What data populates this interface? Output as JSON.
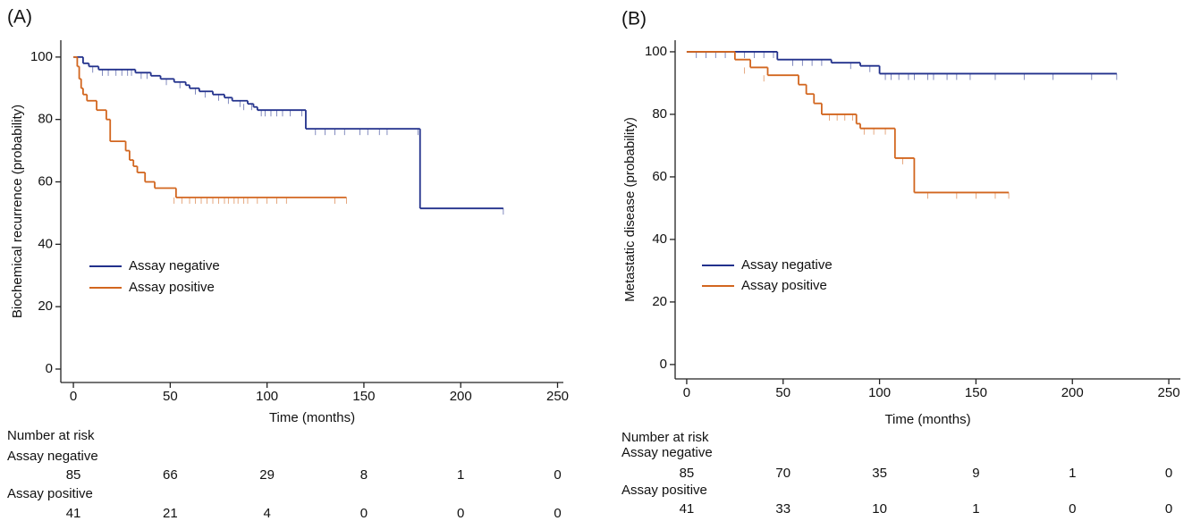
{
  "chart_data": [
    {
      "type": "line",
      "panel_label": "(A)",
      "xlabel": "Time (months)",
      "ylabel": "Biochemical recurrence (probability)",
      "xlim": [
        -6.5,
        253
      ],
      "ylim": [
        -4.3,
        105.4
      ],
      "xticks": [
        0,
        50,
        100,
        150,
        200,
        250
      ],
      "yticks": [
        0,
        20,
        40,
        60,
        80,
        100
      ],
      "series": [
        {
          "name": "Assay negative",
          "color": "#22318c",
          "x": [
            0,
            5,
            8,
            13,
            32,
            40,
            45,
            52,
            58,
            60,
            65,
            72,
            78,
            82,
            90,
            93,
            95,
            120,
            179,
            222
          ],
          "values": [
            100,
            98,
            97,
            96,
            95,
            94,
            93,
            92,
            91,
            90,
            89,
            88,
            87,
            86,
            85,
            84,
            83,
            77,
            51.5,
            51.5
          ],
          "censor_x": [
            10,
            15,
            18,
            22,
            25,
            28,
            30,
            35,
            38,
            48,
            55,
            63,
            68,
            75,
            80,
            86,
            88,
            92,
            97,
            99,
            102,
            105,
            108,
            112,
            118,
            125,
            130,
            135,
            140,
            148,
            152,
            158,
            162,
            178,
            222
          ],
          "censor_values": [
            97,
            96,
            96,
            96,
            96,
            96,
            96,
            95,
            95,
            93,
            92,
            90,
            89,
            88,
            87,
            86,
            85,
            85,
            83,
            83,
            83,
            83,
            83,
            83,
            83,
            77,
            77,
            77,
            77,
            77,
            77,
            77,
            77,
            77,
            51.5
          ]
        },
        {
          "name": "Assay positive",
          "color": "#d2661f",
          "x": [
            0,
            2,
            3,
            4,
            5,
            7,
            12,
            17,
            19,
            27,
            29,
            31,
            33,
            37,
            42,
            53,
            141
          ],
          "values": [
            100,
            97,
            93,
            90,
            88,
            86,
            83,
            80,
            73,
            70,
            67,
            65,
            63,
            60,
            58,
            55,
            55
          ],
          "censor_x": [
            52,
            56,
            60,
            63,
            66,
            69,
            72,
            75,
            78,
            80,
            83,
            85,
            88,
            90,
            95,
            100,
            105,
            110,
            135,
            141
          ],
          "censor_values": [
            55,
            55,
            55,
            55,
            55,
            55,
            55,
            55,
            55,
            55,
            55,
            55,
            55,
            55,
            55,
            55,
            55,
            55,
            55,
            55
          ]
        }
      ],
      "risk_table": {
        "title": "Number at risk",
        "rows": [
          {
            "name": "Assay negative",
            "values": [
              85,
              66,
              29,
              8,
              1,
              0
            ]
          },
          {
            "name": "Assay positive",
            "values": [
              41,
              21,
              4,
              0,
              0,
              0
            ]
          }
        ]
      }
    },
    {
      "type": "line",
      "panel_label": "(B)",
      "xlabel": "Time (months)",
      "ylabel": "Metastatic disease (probability)",
      "xlim": [
        -6,
        256
      ],
      "ylim": [
        -4.6,
        103.7
      ],
      "xticks": [
        0,
        50,
        100,
        150,
        200,
        250
      ],
      "yticks": [
        0,
        20,
        40,
        60,
        80,
        100
      ],
      "series": [
        {
          "name": "Assay negative",
          "color": "#22318c",
          "x": [
            0,
            47,
            75,
            90,
            100,
            223
          ],
          "values": [
            100,
            97.5,
            96.5,
            95.5,
            93,
            93
          ],
          "censor_x": [
            5,
            10,
            15,
            20,
            25,
            30,
            35,
            40,
            45,
            55,
            60,
            65,
            70,
            85,
            95,
            103,
            106,
            110,
            115,
            118,
            125,
            128,
            135,
            140,
            147,
            160,
            175,
            190,
            210,
            223
          ],
          "censor_values": [
            100,
            100,
            100,
            100,
            100,
            100,
            100,
            100,
            100,
            97.5,
            97.5,
            97.5,
            97.5,
            96.5,
            95.5,
            93,
            93,
            93,
            93,
            93,
            93,
            93,
            93,
            93,
            93,
            93,
            93,
            93,
            93,
            93
          ]
        },
        {
          "name": "Assay positive",
          "color": "#d2661f",
          "x": [
            0,
            25,
            33,
            42,
            58,
            62,
            66,
            70,
            88,
            90,
            108,
            118,
            167
          ],
          "values": [
            100,
            97.5,
            95,
            92.5,
            89.5,
            86.5,
            83.5,
            80,
            77,
            75.5,
            66,
            55,
            55
          ],
          "censor_x": [
            30,
            40,
            74,
            78,
            82,
            86,
            92,
            97,
            103,
            112,
            125,
            140,
            150,
            160,
            167
          ],
          "censor_values": [
            95,
            92.5,
            80,
            80,
            80,
            80,
            75.5,
            75.5,
            75.5,
            66,
            55,
            55,
            55,
            55,
            55
          ]
        }
      ],
      "risk_table": {
        "title": "Number at risk",
        "rows": [
          {
            "name": "Assay negative",
            "values": [
              85,
              70,
              35,
              9,
              1,
              0
            ]
          },
          {
            "name": "Assay positive",
            "values": [
              41,
              33,
              10,
              1,
              0,
              0
            ]
          }
        ]
      }
    }
  ]
}
